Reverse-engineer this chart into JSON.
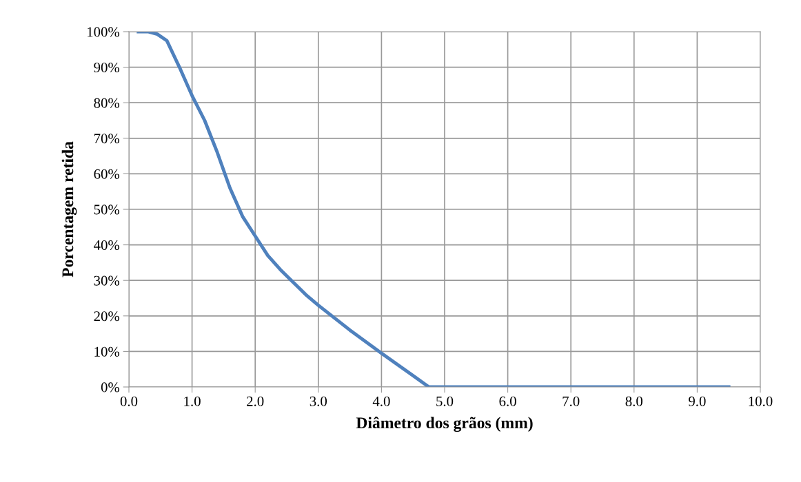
{
  "chart_data": {
    "type": "line",
    "xlabel": "Diâmetro dos grãos (mm)",
    "ylabel": "Porcentagem retida",
    "x": [
      0.15,
      0.3,
      0.45,
      0.6,
      0.8,
      1.0,
      1.2,
      1.4,
      1.6,
      1.8,
      2.0,
      2.2,
      2.4,
      2.6,
      2.8,
      3.0,
      3.5,
      4.0,
      4.5,
      4.75,
      9.5
    ],
    "series": [
      {
        "color": "#4f81bd",
        "values": [
          100,
          100,
          99.3,
          97.5,
          90,
          82,
          75,
          66,
          56,
          48,
          42.5,
          37,
          33,
          29.5,
          26,
          23,
          16,
          9.5,
          3.2,
          0,
          0
        ]
      }
    ],
    "xlim": [
      0,
      10
    ],
    "ylim": [
      0,
      100
    ],
    "xticks": [
      {
        "value": 0,
        "label": "0.0"
      },
      {
        "value": 1,
        "label": "1.0"
      },
      {
        "value": 2,
        "label": "2.0"
      },
      {
        "value": 3,
        "label": "3.0"
      },
      {
        "value": 4,
        "label": "4.0"
      },
      {
        "value": 5,
        "label": "5.0"
      },
      {
        "value": 6,
        "label": "6.0"
      },
      {
        "value": 7,
        "label": "7.0"
      },
      {
        "value": 8,
        "label": "8.0"
      },
      {
        "value": 9,
        "label": "9.0"
      },
      {
        "value": 10,
        "label": "10.0"
      }
    ],
    "yticks": [
      {
        "value": 0,
        "label": "0%"
      },
      {
        "value": 10,
        "label": "10%"
      },
      {
        "value": 20,
        "label": "20%"
      },
      {
        "value": 30,
        "label": "30%"
      },
      {
        "value": 40,
        "label": "40%"
      },
      {
        "value": 50,
        "label": "50%"
      },
      {
        "value": 60,
        "label": "60%"
      },
      {
        "value": 70,
        "label": "70%"
      },
      {
        "value": 80,
        "label": "80%"
      },
      {
        "value": 90,
        "label": "90%"
      },
      {
        "value": 100,
        "label": "100%"
      }
    ],
    "grid": true,
    "legend": false,
    "marker": "none",
    "line_style": "solid"
  }
}
